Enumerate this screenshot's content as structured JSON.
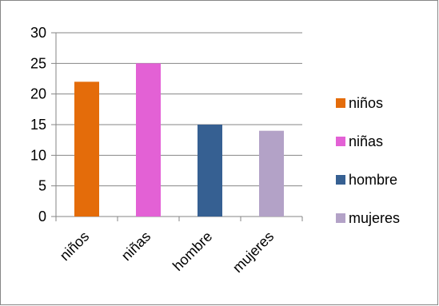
{
  "chart_data": {
    "type": "bar",
    "categories": [
      "niños",
      "niñas",
      "hombre",
      "mujeres"
    ],
    "values": [
      22,
      25,
      15,
      14
    ],
    "colors": [
      "#e46c0a",
      "#e361d5",
      "#366092",
      "#b3a2c7"
    ],
    "ylim": [
      0,
      30
    ],
    "yticks": [
      0,
      5,
      10,
      15,
      20,
      25,
      30
    ],
    "grid": true,
    "legend_position": "right",
    "legend": [
      {
        "label": "niños",
        "color": "#e46c0a"
      },
      {
        "label": "niñas",
        "color": "#e361d5"
      },
      {
        "label": "hombre",
        "color": "#366092"
      },
      {
        "label": "mujeres",
        "color": "#b3a2c7"
      }
    ]
  }
}
